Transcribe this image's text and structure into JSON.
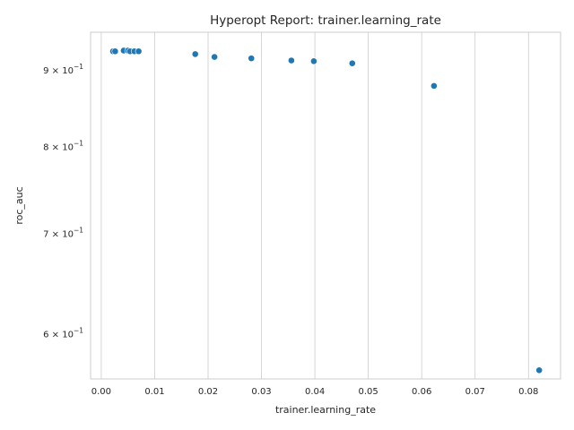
{
  "chart_data": {
    "type": "scatter",
    "title": "Hyperopt Report: trainer.learning_rate",
    "xlabel": "trainer.learning_rate",
    "ylabel": "roc_auc",
    "xlim": [
      -0.002,
      0.086
    ],
    "ylim": [
      0.5595,
      0.9535
    ],
    "yscale": "log",
    "grid": "vertical only",
    "x_ticks": [
      {
        "value": 0.0,
        "label": "0.00"
      },
      {
        "value": 0.01,
        "label": "0.01"
      },
      {
        "value": 0.02,
        "label": "0.02"
      },
      {
        "value": 0.03,
        "label": "0.03"
      },
      {
        "value": 0.04,
        "label": "0.04"
      },
      {
        "value": 0.05,
        "label": "0.05"
      },
      {
        "value": 0.06,
        "label": "0.06"
      },
      {
        "value": 0.07,
        "label": "0.07"
      },
      {
        "value": 0.08,
        "label": "0.08"
      }
    ],
    "y_ticks": [
      {
        "value": 0.6,
        "mantissa": "6",
        "base": "10",
        "exp": "−1"
      },
      {
        "value": 0.7,
        "mantissa": "7",
        "base": "10",
        "exp": "−1"
      },
      {
        "value": 0.8,
        "mantissa": "8",
        "base": "10",
        "exp": "−1"
      },
      {
        "value": 0.9,
        "mantissa": "9",
        "base": "10",
        "exp": "−1"
      }
    ],
    "point_color": "#1f77b4",
    "points": [
      {
        "x": 0.0022,
        "y": 0.926
      },
      {
        "x": 0.0026,
        "y": 0.926
      },
      {
        "x": 0.0042,
        "y": 0.927
      },
      {
        "x": 0.005,
        "y": 0.927
      },
      {
        "x": 0.0054,
        "y": 0.926
      },
      {
        "x": 0.0062,
        "y": 0.926
      },
      {
        "x": 0.007,
        "y": 0.926
      },
      {
        "x": 0.0176,
        "y": 0.922
      },
      {
        "x": 0.0212,
        "y": 0.918
      },
      {
        "x": 0.0281,
        "y": 0.916
      },
      {
        "x": 0.0356,
        "y": 0.913
      },
      {
        "x": 0.0398,
        "y": 0.912
      },
      {
        "x": 0.047,
        "y": 0.909
      },
      {
        "x": 0.0623,
        "y": 0.878
      },
      {
        "x": 0.082,
        "y": 0.567
      }
    ]
  }
}
